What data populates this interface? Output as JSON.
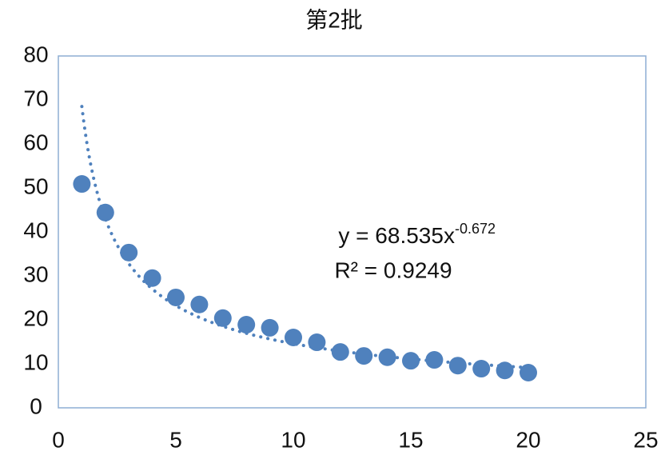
{
  "chart_data": {
    "type": "scatter",
    "title": "第2批",
    "x": [
      1,
      2,
      3,
      4,
      5,
      6,
      7,
      8,
      9,
      10,
      11,
      12,
      13,
      14,
      15,
      16,
      17,
      18,
      19,
      20
    ],
    "values": [
      50.9,
      44.4,
      35.3,
      29.5,
      25.1,
      23.5,
      20.4,
      18.9,
      18.2,
      16.0,
      14.9,
      12.7,
      11.8,
      11.5,
      10.7,
      10.9,
      9.6,
      8.9,
      8.5,
      8.0
    ],
    "color": "#4f81bd",
    "xlim": [
      0,
      25
    ],
    "xticks": [
      0,
      5,
      10,
      15,
      20,
      25
    ],
    "ylim": [
      0,
      80
    ],
    "yticks": [
      0,
      10,
      20,
      30,
      40,
      50,
      60,
      70,
      80
    ],
    "grid": false,
    "trendline": {
      "equation": "y = 68.535x",
      "exponent": "-0.672",
      "r_squared": "R² = 0.9249"
    }
  }
}
